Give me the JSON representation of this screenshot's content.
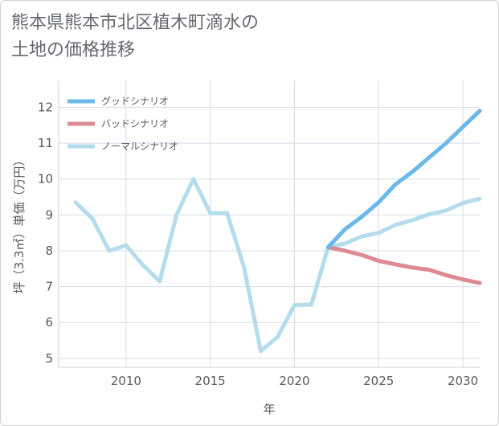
{
  "title_line1": "熊本県熊本市北区植木町滴水の",
  "title_line2": "土地の価格推移",
  "chart_data": {
    "type": "line",
    "xlabel": "年",
    "ylabel": "坪（3.3㎡）単価（万円）",
    "xlim": [
      2006,
      2031
    ],
    "ylim": [
      4.75,
      12.75
    ],
    "xticks": [
      2010,
      2015,
      2020,
      2025,
      2030
    ],
    "yticks": [
      5,
      6,
      7,
      8,
      9,
      10,
      11,
      12
    ],
    "grid": true,
    "legend_position": "top-left",
    "series": [
      {
        "name": "グッドシナリオ",
        "color": "#6bb8ea",
        "width": 5,
        "x": [
          2022,
          2023,
          2024,
          2025,
          2026,
          2027,
          2028,
          2029,
          2030,
          2031
        ],
        "y": [
          8.1,
          8.6,
          8.95,
          9.35,
          9.85,
          10.2,
          10.6,
          11.0,
          11.45,
          11.9
        ]
      },
      {
        "name": "バッドシナリオ",
        "color": "#dd8a92",
        "width": 5,
        "x": [
          2022,
          2023,
          2024,
          2025,
          2026,
          2027,
          2028,
          2029,
          2030,
          2031
        ],
        "y": [
          8.1,
          8.0,
          7.88,
          7.72,
          7.62,
          7.53,
          7.47,
          7.32,
          7.2,
          7.1
        ]
      },
      {
        "name": "ノーマルシナリオ",
        "color": "#b5dcec",
        "width": 5,
        "x": [
          2007,
          2008,
          2009,
          2010,
          2011,
          2012,
          2013,
          2014,
          2015,
          2016,
          2017,
          2018,
          2019,
          2020,
          2021,
          2022,
          2023,
          2024,
          2025,
          2026,
          2027,
          2028,
          2029,
          2030,
          2031
        ],
        "y": [
          9.35,
          8.9,
          8.0,
          8.15,
          7.6,
          7.15,
          9.0,
          10.0,
          9.05,
          9.05,
          7.55,
          5.2,
          5.6,
          6.48,
          6.5,
          8.1,
          8.2,
          8.4,
          8.5,
          8.72,
          8.85,
          9.02,
          9.12,
          9.33,
          9.45
        ]
      }
    ]
  }
}
